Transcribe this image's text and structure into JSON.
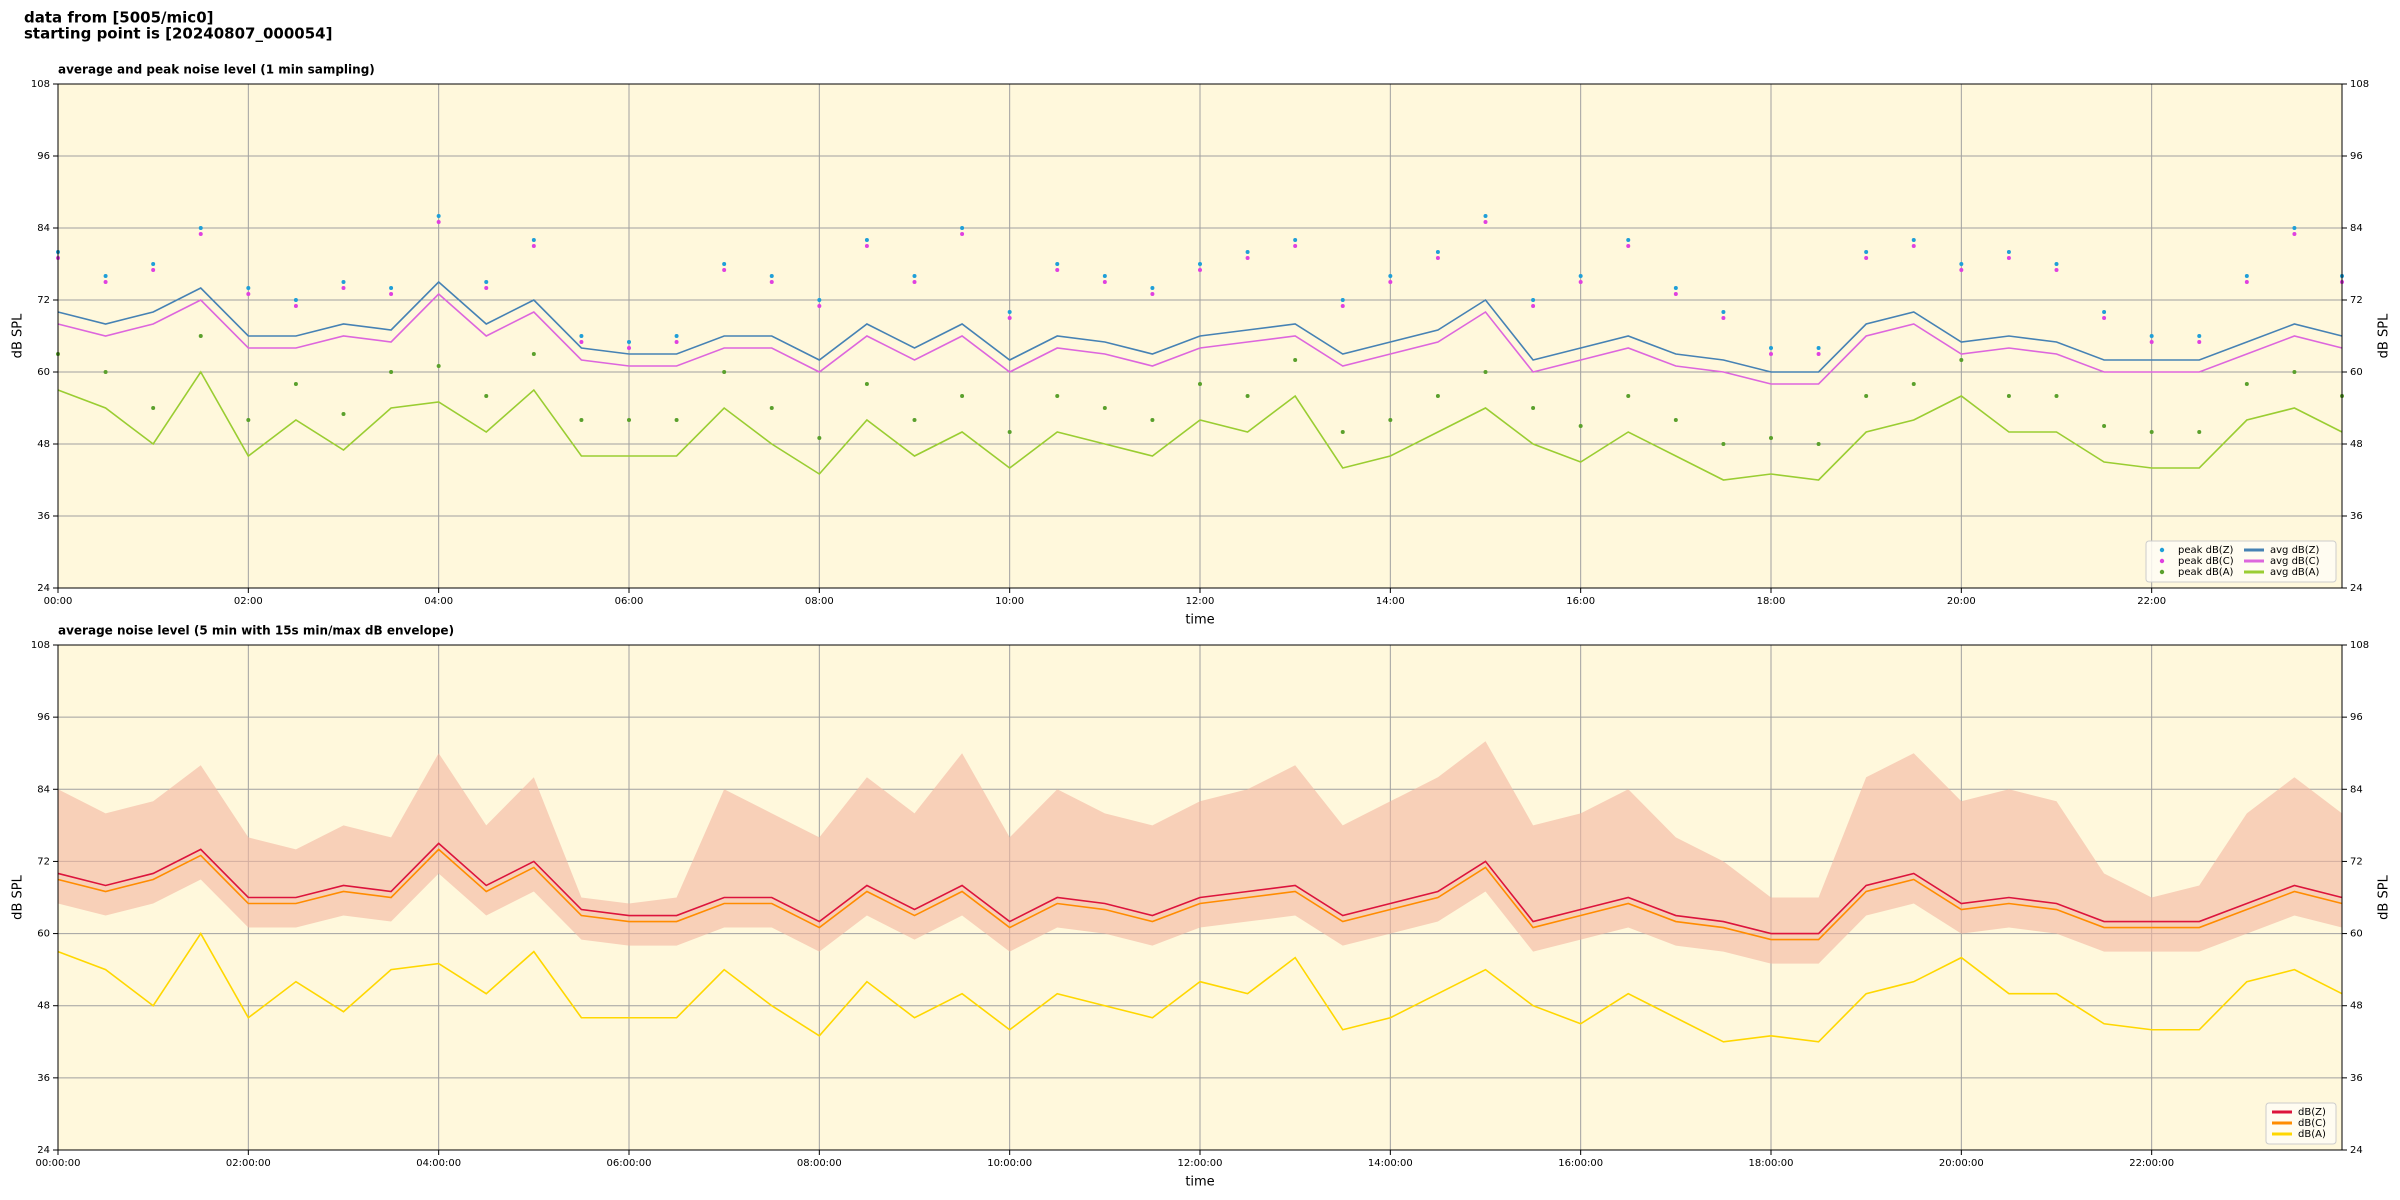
{
  "header": {
    "lines": [
      "data from [5005/mic0]",
      "starting point is [20240807_000054]"
    ]
  },
  "chart_data": [
    {
      "type": "line",
      "title": "average and peak noise level (1 min sampling)",
      "xlabel": "time",
      "ylabel": "dB SPL",
      "y2label": "dB SPL",
      "x": [
        0,
        0.5,
        1,
        1.5,
        2,
        2.5,
        3,
        3.5,
        4,
        4.5,
        5,
        5.5,
        6,
        6.5,
        7,
        7.5,
        8,
        8.5,
        9,
        9.5,
        10,
        10.5,
        11,
        11.5,
        12,
        12.5,
        13,
        13.5,
        14,
        14.5,
        15,
        15.5,
        16,
        16.5,
        17,
        17.5,
        18,
        18.5,
        19,
        19.5,
        20,
        20.5,
        21,
        21.5,
        22,
        22.5,
        23,
        23.5,
        24
      ],
      "xlim": [
        0,
        24
      ],
      "xticks": [
        {
          "value": 0,
          "label": "00:00"
        },
        {
          "value": 2,
          "label": "02:00"
        },
        {
          "value": 4,
          "label": "04:00"
        },
        {
          "value": 6,
          "label": "06:00"
        },
        {
          "value": 8,
          "label": "08:00"
        },
        {
          "value": 10,
          "label": "10:00"
        },
        {
          "value": 12,
          "label": "12:00"
        },
        {
          "value": 14,
          "label": "14:00"
        },
        {
          "value": 16,
          "label": "16:00"
        },
        {
          "value": 18,
          "label": "18:00"
        },
        {
          "value": 20,
          "label": "20:00"
        },
        {
          "value": 22,
          "label": "22:00"
        }
      ],
      "ylim": [
        24,
        108
      ],
      "yticks": [
        24,
        36,
        48,
        60,
        72,
        84,
        96,
        108
      ],
      "y2lim": [
        24,
        108
      ],
      "y2ticks": [
        24,
        36,
        48,
        60,
        72,
        84,
        96,
        108
      ],
      "grid": true,
      "background": "#fff8dc",
      "legend": "lower right",
      "legend_columns": 2,
      "series": [
        {
          "name": "peak dB(Z)",
          "color": "#1f9fd8",
          "mode": "markers",
          "values": [
            80,
            76,
            78,
            84,
            74,
            72,
            75,
            74,
            86,
            75,
            82,
            66,
            65,
            66,
            78,
            76,
            72,
            82,
            76,
            84,
            70,
            78,
            76,
            74,
            78,
            80,
            82,
            72,
            76,
            80,
            86,
            72,
            76,
            82,
            74,
            70,
            64,
            64,
            80,
            82,
            78,
            80,
            78,
            70,
            66,
            66,
            76,
            84,
            76
          ]
        },
        {
          "name": "peak dB(C)",
          "color": "#e040e0",
          "mode": "markers",
          "values": [
            79,
            75,
            77,
            83,
            73,
            71,
            74,
            73,
            85,
            74,
            81,
            65,
            64,
            65,
            77,
            75,
            71,
            81,
            75,
            83,
            69,
            77,
            75,
            73,
            77,
            79,
            81,
            71,
            75,
            79,
            85,
            71,
            75,
            81,
            73,
            69,
            63,
            63,
            79,
            81,
            77,
            79,
            77,
            69,
            65,
            65,
            75,
            83,
            75
          ]
        },
        {
          "name": "peak dB(A)",
          "color": "#5aa02c",
          "mode": "markers",
          "values": [
            63,
            60,
            54,
            66,
            52,
            58,
            53,
            60,
            61,
            56,
            63,
            52,
            52,
            52,
            60,
            54,
            49,
            58,
            52,
            56,
            50,
            56,
            54,
            52,
            58,
            56,
            62,
            50,
            52,
            56,
            60,
            54,
            51,
            56,
            52,
            48,
            49,
            48,
            56,
            58,
            62,
            56,
            56,
            51,
            50,
            50,
            58,
            60,
            56
          ]
        },
        {
          "name": "avg dB(Z)",
          "color": "#4682b4",
          "mode": "lines",
          "values": [
            70,
            68,
            70,
            74,
            66,
            66,
            68,
            67,
            75,
            68,
            72,
            64,
            63,
            63,
            66,
            66,
            62,
            68,
            64,
            68,
            62,
            66,
            65,
            63,
            66,
            67,
            68,
            63,
            65,
            67,
            72,
            62,
            64,
            66,
            63,
            62,
            60,
            60,
            68,
            70,
            65,
            66,
            65,
            62,
            62,
            62,
            65,
            68,
            66
          ]
        },
        {
          "name": "avg dB(C)",
          "color": "#dd66dd",
          "mode": "lines",
          "values": [
            68,
            66,
            68,
            72,
            64,
            64,
            66,
            65,
            73,
            66,
            70,
            62,
            61,
            61,
            64,
            64,
            60,
            66,
            62,
            66,
            60,
            64,
            63,
            61,
            64,
            65,
            66,
            61,
            63,
            65,
            70,
            60,
            62,
            64,
            61,
            60,
            58,
            58,
            66,
            68,
            63,
            64,
            63,
            60,
            60,
            60,
            63,
            66,
            64
          ]
        },
        {
          "name": "avg dB(A)",
          "color": "#9acd32",
          "mode": "lines",
          "values": [
            57,
            54,
            48,
            60,
            46,
            52,
            47,
            54,
            55,
            50,
            57,
            46,
            46,
            46,
            54,
            48,
            43,
            52,
            46,
            50,
            44,
            50,
            48,
            46,
            52,
            50,
            56,
            44,
            46,
            50,
            54,
            48,
            45,
            50,
            46,
            42,
            43,
            42,
            50,
            52,
            56,
            50,
            50,
            45,
            44,
            44,
            52,
            54,
            50
          ]
        }
      ]
    },
    {
      "type": "line",
      "title": "average noise level (5 min with 15s min/max dB envelope)",
      "xlabel": "time",
      "ylabel": "dB SPL",
      "y2label": "dB SPL",
      "x": [
        0,
        0.5,
        1,
        1.5,
        2,
        2.5,
        3,
        3.5,
        4,
        4.5,
        5,
        5.5,
        6,
        6.5,
        7,
        7.5,
        8,
        8.5,
        9,
        9.5,
        10,
        10.5,
        11,
        11.5,
        12,
        12.5,
        13,
        13.5,
        14,
        14.5,
        15,
        15.5,
        16,
        16.5,
        17,
        17.5,
        18,
        18.5,
        19,
        19.5,
        20,
        20.5,
        21,
        21.5,
        22,
        22.5,
        23,
        23.5,
        24
      ],
      "xlim": [
        0,
        24
      ],
      "xticks": [
        {
          "value": 0,
          "label": "00:00:00"
        },
        {
          "value": 2,
          "label": "02:00:00"
        },
        {
          "value": 4,
          "label": "04:00:00"
        },
        {
          "value": 6,
          "label": "06:00:00"
        },
        {
          "value": 8,
          "label": "08:00:00"
        },
        {
          "value": 10,
          "label": "10:00:00"
        },
        {
          "value": 12,
          "label": "12:00:00"
        },
        {
          "value": 14,
          "label": "14:00:00"
        },
        {
          "value": 16,
          "label": "16:00:00"
        },
        {
          "value": 18,
          "label": "18:00:00"
        },
        {
          "value": 20,
          "label": "20:00:00"
        },
        {
          "value": 22,
          "label": "22:00:00"
        }
      ],
      "ylim": [
        24,
        108
      ],
      "yticks": [
        24,
        36,
        48,
        60,
        72,
        84,
        96,
        108
      ],
      "y2lim": [
        24,
        108
      ],
      "y2ticks": [
        24,
        36,
        48,
        60,
        72,
        84,
        96,
        108
      ],
      "grid": true,
      "background": "#fff8dc",
      "legend": "lower right",
      "legend_columns": 1,
      "envelope": {
        "color": "#f4b6a0",
        "lower": [
          65,
          63,
          65,
          69,
          61,
          61,
          63,
          62,
          70,
          63,
          67,
          59,
          58,
          58,
          61,
          61,
          57,
          63,
          59,
          63,
          57,
          61,
          60,
          58,
          61,
          62,
          63,
          58,
          60,
          62,
          67,
          57,
          59,
          61,
          58,
          57,
          55,
          55,
          63,
          65,
          60,
          61,
          60,
          57,
          57,
          57,
          60,
          63,
          61
        ],
        "upper": [
          84,
          80,
          82,
          88,
          76,
          74,
          78,
          76,
          90,
          78,
          86,
          66,
          65,
          66,
          84,
          80,
          76,
          86,
          80,
          90,
          76,
          84,
          80,
          78,
          82,
          84,
          88,
          78,
          82,
          86,
          92,
          78,
          80,
          84,
          76,
          72,
          66,
          66,
          86,
          90,
          82,
          84,
          82,
          70,
          66,
          68,
          80,
          86,
          80
        ]
      },
      "series": [
        {
          "name": "dB(Z)",
          "color": "#dc143c",
          "mode": "lines",
          "values": [
            70,
            68,
            70,
            74,
            66,
            66,
            68,
            67,
            75,
            68,
            72,
            64,
            63,
            63,
            66,
            66,
            62,
            68,
            64,
            68,
            62,
            66,
            65,
            63,
            66,
            67,
            68,
            63,
            65,
            67,
            72,
            62,
            64,
            66,
            63,
            62,
            60,
            60,
            68,
            70,
            65,
            66,
            65,
            62,
            62,
            62,
            65,
            68,
            66
          ]
        },
        {
          "name": "dB(C)",
          "color": "#ff8c00",
          "mode": "lines",
          "values": [
            69,
            67,
            69,
            73,
            65,
            65,
            67,
            66,
            74,
            67,
            71,
            63,
            62,
            62,
            65,
            65,
            61,
            67,
            63,
            67,
            61,
            65,
            64,
            62,
            65,
            66,
            67,
            62,
            64,
            66,
            71,
            61,
            63,
            65,
            62,
            61,
            59,
            59,
            67,
            69,
            64,
            65,
            64,
            61,
            61,
            61,
            64,
            67,
            65
          ]
        },
        {
          "name": "dB(A)",
          "color": "#ffd700",
          "mode": "lines",
          "values": [
            57,
            54,
            48,
            60,
            46,
            52,
            47,
            54,
            55,
            50,
            57,
            46,
            46,
            46,
            54,
            48,
            43,
            52,
            46,
            50,
            44,
            50,
            48,
            46,
            52,
            50,
            56,
            44,
            46,
            50,
            54,
            48,
            45,
            50,
            46,
            42,
            43,
            42,
            50,
            52,
            56,
            50,
            50,
            45,
            44,
            44,
            52,
            54,
            50
          ]
        }
      ]
    }
  ]
}
